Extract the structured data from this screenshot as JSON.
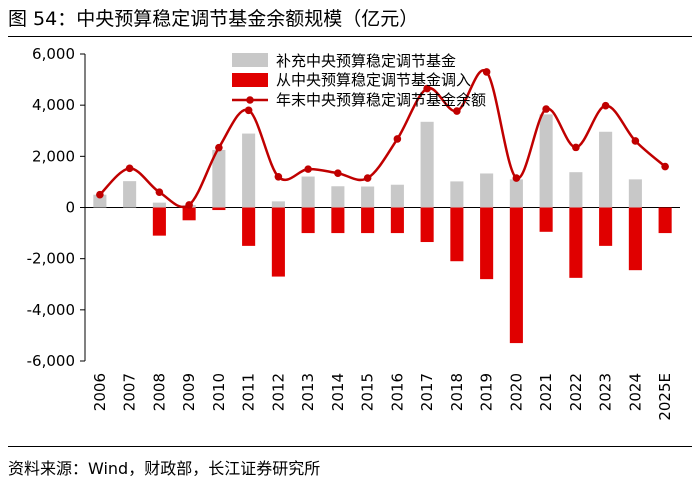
{
  "figure_title": "图 54：中央预算稳定调节基金余额规模（亿元）",
  "source": "资料来源：Wind，财政部，长江证券研究所",
  "colors": {
    "inflow": "#c8c8c8",
    "outflow": "#e00000",
    "balance": "#c00000",
    "axis": "#000000"
  },
  "chart_data": {
    "type": "bar",
    "title": "中央预算稳定调节基金余额规模（亿元）",
    "xlabel": "",
    "ylabel": "",
    "ylim": [
      -6000,
      6000
    ],
    "yticks": [
      -6000,
      -4000,
      -2000,
      0,
      2000,
      4000,
      6000
    ],
    "ytick_labels": [
      "-6,000",
      "-4,000",
      "-2,000",
      "0",
      "2,000",
      "4,000",
      "6,000"
    ],
    "legend_position": "top-center",
    "categories": [
      "2006",
      "2007",
      "2008",
      "2009",
      "2010",
      "2011",
      "2012",
      "2013",
      "2014",
      "2015",
      "2016",
      "2017",
      "2018",
      "2019",
      "2020",
      "2021",
      "2022",
      "2023",
      "2024",
      "2025E"
    ],
    "series": [
      {
        "name": "补充中央预算稳定调节基金",
        "type": "bar",
        "values": [
          500,
          1030,
          190,
          100,
          2250,
          2890,
          240,
          1210,
          830,
          820,
          890,
          3350,
          1020,
          1330,
          1100,
          3640,
          1380,
          2960,
          1100,
          0
        ]
      },
      {
        "name": "从中央预算稳定调节基金调入",
        "type": "bar",
        "values": [
          0,
          0,
          -1100,
          -500,
          -100,
          -1500,
          -2700,
          -1000,
          -1000,
          -1000,
          -1000,
          -1350,
          -2100,
          -2800,
          -5300,
          -950,
          -2750,
          -1500,
          -2450,
          -1000
        ]
      },
      {
        "name": "年末中央预算稳定调节基金余额",
        "type": "line",
        "values": [
          500,
          1530,
          600,
          100,
          2340,
          3800,
          1200,
          1500,
          1340,
          1150,
          2680,
          4650,
          3770,
          5300,
          1150,
          3850,
          2350,
          3980,
          2600,
          1600
        ]
      }
    ]
  }
}
